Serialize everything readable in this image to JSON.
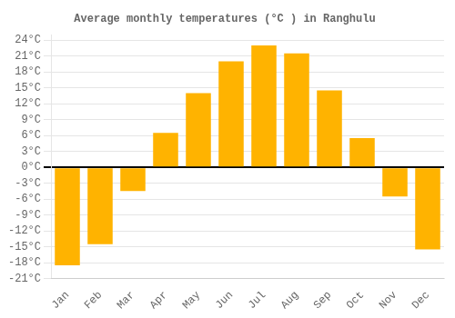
{
  "chart_data": {
    "type": "bar",
    "title": "Average monthly temperatures (°C ) in Ranghulu",
    "categories": [
      "Jan",
      "Feb",
      "Mar",
      "Apr",
      "May",
      "Jun",
      "Jul",
      "Aug",
      "Sep",
      "Oct",
      "Nov",
      "Dec"
    ],
    "values": [
      -18.5,
      -14.5,
      -4.5,
      6.5,
      14.0,
      20.0,
      23.0,
      21.5,
      14.5,
      5.5,
      -5.5,
      -15.5
    ],
    "color": "#FFB300",
    "ylim": [
      -21,
      25
    ],
    "yticks": [
      {
        "value": -21,
        "label": "-21°C"
      },
      {
        "value": -18,
        "label": "-18°C"
      },
      {
        "value": -15,
        "label": "-15°C"
      },
      {
        "value": -12,
        "label": "-12°C"
      },
      {
        "value": -9,
        "label": "-9°C"
      },
      {
        "value": -6,
        "label": "-6°C"
      },
      {
        "value": -3,
        "label": "-3°C"
      },
      {
        "value": 0,
        "label": "0°C"
      },
      {
        "value": 3,
        "label": "3°C"
      },
      {
        "value": 6,
        "label": "6°C"
      },
      {
        "value": 9,
        "label": "9°C"
      },
      {
        "value": 12,
        "label": "12°C"
      },
      {
        "value": 15,
        "label": "15°C"
      },
      {
        "value": 18,
        "label": "18°C"
      },
      {
        "value": 21,
        "label": "21°C"
      },
      {
        "value": 24,
        "label": "24°C"
      }
    ],
    "grid": true
  }
}
